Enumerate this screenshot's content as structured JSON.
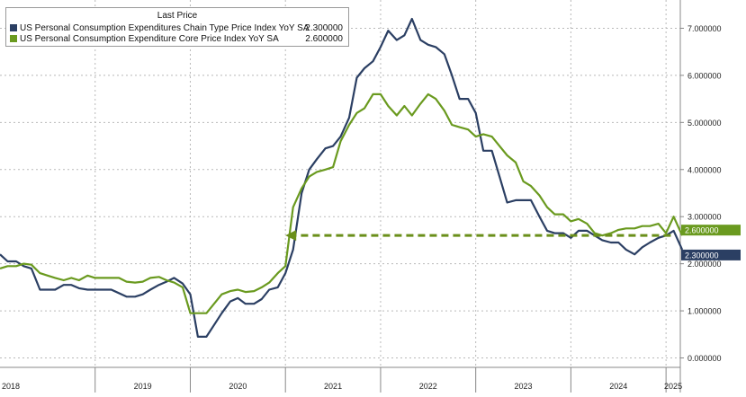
{
  "chart_data": {
    "type": "line",
    "legend": {
      "header": "Last Price",
      "placement": "top-left"
    },
    "y_ticks": [
      "7.000000",
      "6.000000",
      "5.000000",
      "4.000000",
      "3.000000",
      "2.000000",
      "1.000000",
      "0.000000"
    ],
    "ylim": [
      -0.2,
      7.6
    ],
    "x_tick_labels": [
      "2018",
      "2019",
      "2020",
      "2021",
      "2022",
      "2023",
      "2024",
      "2025"
    ],
    "xlim": [
      2018.0,
      2025.15
    ],
    "grid": true,
    "reference_arrow": {
      "y": 2.6,
      "x_start": 2025.05,
      "x_end": 2021.0,
      "color": "#6a8f1a"
    },
    "series": [
      {
        "name": "US Personal Consumption Expenditures Chain Type Price Index YoY SA",
        "last_value": "2.300000",
        "color": "#2b3f63",
        "points": [
          [
            2018.0,
            2.2
          ],
          [
            2018.08,
            2.05
          ],
          [
            2018.17,
            2.05
          ],
          [
            2018.25,
            1.95
          ],
          [
            2018.33,
            1.9
          ],
          [
            2018.42,
            1.45
          ],
          [
            2018.58,
            1.45
          ],
          [
            2018.67,
            1.55
          ],
          [
            2018.75,
            1.55
          ],
          [
            2018.83,
            1.48
          ],
          [
            2018.92,
            1.45
          ],
          [
            2019.0,
            1.45
          ],
          [
            2019.17,
            1.45
          ],
          [
            2019.33,
            1.3
          ],
          [
            2019.42,
            1.3
          ],
          [
            2019.5,
            1.35
          ],
          [
            2019.58,
            1.45
          ],
          [
            2019.67,
            1.55
          ],
          [
            2019.75,
            1.62
          ],
          [
            2019.83,
            1.7
          ],
          [
            2019.92,
            1.58
          ],
          [
            2020.0,
            1.35
          ],
          [
            2020.08,
            0.45
          ],
          [
            2020.17,
            0.45
          ],
          [
            2020.25,
            0.7
          ],
          [
            2020.33,
            0.95
          ],
          [
            2020.42,
            1.2
          ],
          [
            2020.5,
            1.27
          ],
          [
            2020.58,
            1.15
          ],
          [
            2020.67,
            1.15
          ],
          [
            2020.75,
            1.25
          ],
          [
            2020.83,
            1.45
          ],
          [
            2020.92,
            1.5
          ],
          [
            2021.0,
            1.8
          ],
          [
            2021.08,
            2.3
          ],
          [
            2021.17,
            3.5
          ],
          [
            2021.25,
            4.0
          ],
          [
            2021.33,
            4.22
          ],
          [
            2021.42,
            4.45
          ],
          [
            2021.5,
            4.5
          ],
          [
            2021.58,
            4.7
          ],
          [
            2021.67,
            5.1
          ],
          [
            2021.75,
            5.95
          ],
          [
            2021.83,
            6.15
          ],
          [
            2021.92,
            6.3
          ],
          [
            2022.0,
            6.6
          ],
          [
            2022.08,
            6.95
          ],
          [
            2022.17,
            6.75
          ],
          [
            2022.25,
            6.85
          ],
          [
            2022.33,
            7.2
          ],
          [
            2022.42,
            6.75
          ],
          [
            2022.5,
            6.65
          ],
          [
            2022.58,
            6.6
          ],
          [
            2022.67,
            6.45
          ],
          [
            2022.75,
            6.0
          ],
          [
            2022.83,
            5.5
          ],
          [
            2022.92,
            5.5
          ],
          [
            2023.0,
            5.2
          ],
          [
            2023.08,
            4.4
          ],
          [
            2023.17,
            4.4
          ],
          [
            2023.25,
            3.85
          ],
          [
            2023.33,
            3.3
          ],
          [
            2023.42,
            3.35
          ],
          [
            2023.5,
            3.35
          ],
          [
            2023.58,
            3.35
          ],
          [
            2023.67,
            3.0
          ],
          [
            2023.75,
            2.7
          ],
          [
            2023.83,
            2.65
          ],
          [
            2023.92,
            2.65
          ],
          [
            2024.0,
            2.55
          ],
          [
            2024.08,
            2.7
          ],
          [
            2024.17,
            2.7
          ],
          [
            2024.25,
            2.6
          ],
          [
            2024.33,
            2.5
          ],
          [
            2024.42,
            2.45
          ],
          [
            2024.5,
            2.45
          ],
          [
            2024.58,
            2.3
          ],
          [
            2024.67,
            2.2
          ],
          [
            2024.75,
            2.35
          ],
          [
            2024.83,
            2.45
          ],
          [
            2024.92,
            2.55
          ],
          [
            2025.0,
            2.6
          ],
          [
            2025.08,
            2.7
          ],
          [
            2025.17,
            2.3
          ]
        ]
      },
      {
        "name": "US Personal Consumption Expenditure Core Price Index YoY SA",
        "last_value": "2.600000",
        "color": "#6a9a1f",
        "points": [
          [
            2018.0,
            1.9
          ],
          [
            2018.08,
            1.95
          ],
          [
            2018.17,
            1.95
          ],
          [
            2018.25,
            2.0
          ],
          [
            2018.33,
            1.98
          ],
          [
            2018.42,
            1.8
          ],
          [
            2018.5,
            1.75
          ],
          [
            2018.58,
            1.7
          ],
          [
            2018.67,
            1.65
          ],
          [
            2018.75,
            1.7
          ],
          [
            2018.83,
            1.65
          ],
          [
            2018.92,
            1.75
          ],
          [
            2019.0,
            1.7
          ],
          [
            2019.17,
            1.7
          ],
          [
            2019.25,
            1.7
          ],
          [
            2019.33,
            1.62
          ],
          [
            2019.42,
            1.6
          ],
          [
            2019.5,
            1.62
          ],
          [
            2019.58,
            1.7
          ],
          [
            2019.67,
            1.72
          ],
          [
            2019.75,
            1.65
          ],
          [
            2019.83,
            1.6
          ],
          [
            2019.92,
            1.5
          ],
          [
            2020.0,
            0.95
          ],
          [
            2020.08,
            0.95
          ],
          [
            2020.17,
            0.95
          ],
          [
            2020.25,
            1.15
          ],
          [
            2020.33,
            1.35
          ],
          [
            2020.42,
            1.42
          ],
          [
            2020.5,
            1.45
          ],
          [
            2020.58,
            1.4
          ],
          [
            2020.67,
            1.42
          ],
          [
            2020.75,
            1.5
          ],
          [
            2020.83,
            1.6
          ],
          [
            2020.92,
            1.8
          ],
          [
            2021.0,
            1.95
          ],
          [
            2021.08,
            3.2
          ],
          [
            2021.17,
            3.6
          ],
          [
            2021.25,
            3.85
          ],
          [
            2021.33,
            3.95
          ],
          [
            2021.42,
            4.0
          ],
          [
            2021.5,
            4.05
          ],
          [
            2021.58,
            4.6
          ],
          [
            2021.67,
            4.95
          ],
          [
            2021.75,
            5.2
          ],
          [
            2021.83,
            5.3
          ],
          [
            2021.92,
            5.6
          ],
          [
            2022.0,
            5.6
          ],
          [
            2022.08,
            5.35
          ],
          [
            2022.17,
            5.15
          ],
          [
            2022.25,
            5.35
          ],
          [
            2022.33,
            5.15
          ],
          [
            2022.42,
            5.4
          ],
          [
            2022.5,
            5.6
          ],
          [
            2022.58,
            5.5
          ],
          [
            2022.67,
            5.25
          ],
          [
            2022.75,
            4.95
          ],
          [
            2022.83,
            4.9
          ],
          [
            2022.92,
            4.85
          ],
          [
            2023.0,
            4.7
          ],
          [
            2023.08,
            4.75
          ],
          [
            2023.17,
            4.7
          ],
          [
            2023.25,
            4.5
          ],
          [
            2023.33,
            4.3
          ],
          [
            2023.42,
            4.15
          ],
          [
            2023.5,
            3.75
          ],
          [
            2023.58,
            3.65
          ],
          [
            2023.67,
            3.45
          ],
          [
            2023.75,
            3.2
          ],
          [
            2023.83,
            3.05
          ],
          [
            2023.92,
            3.05
          ],
          [
            2024.0,
            2.9
          ],
          [
            2024.08,
            2.95
          ],
          [
            2024.17,
            2.85
          ],
          [
            2024.25,
            2.65
          ],
          [
            2024.33,
            2.6
          ],
          [
            2024.42,
            2.65
          ],
          [
            2024.5,
            2.72
          ],
          [
            2024.58,
            2.75
          ],
          [
            2024.67,
            2.75
          ],
          [
            2024.75,
            2.8
          ],
          [
            2024.83,
            2.8
          ],
          [
            2024.92,
            2.85
          ],
          [
            2025.0,
            2.65
          ],
          [
            2025.08,
            3.0
          ],
          [
            2025.17,
            2.6
          ]
        ]
      }
    ]
  }
}
